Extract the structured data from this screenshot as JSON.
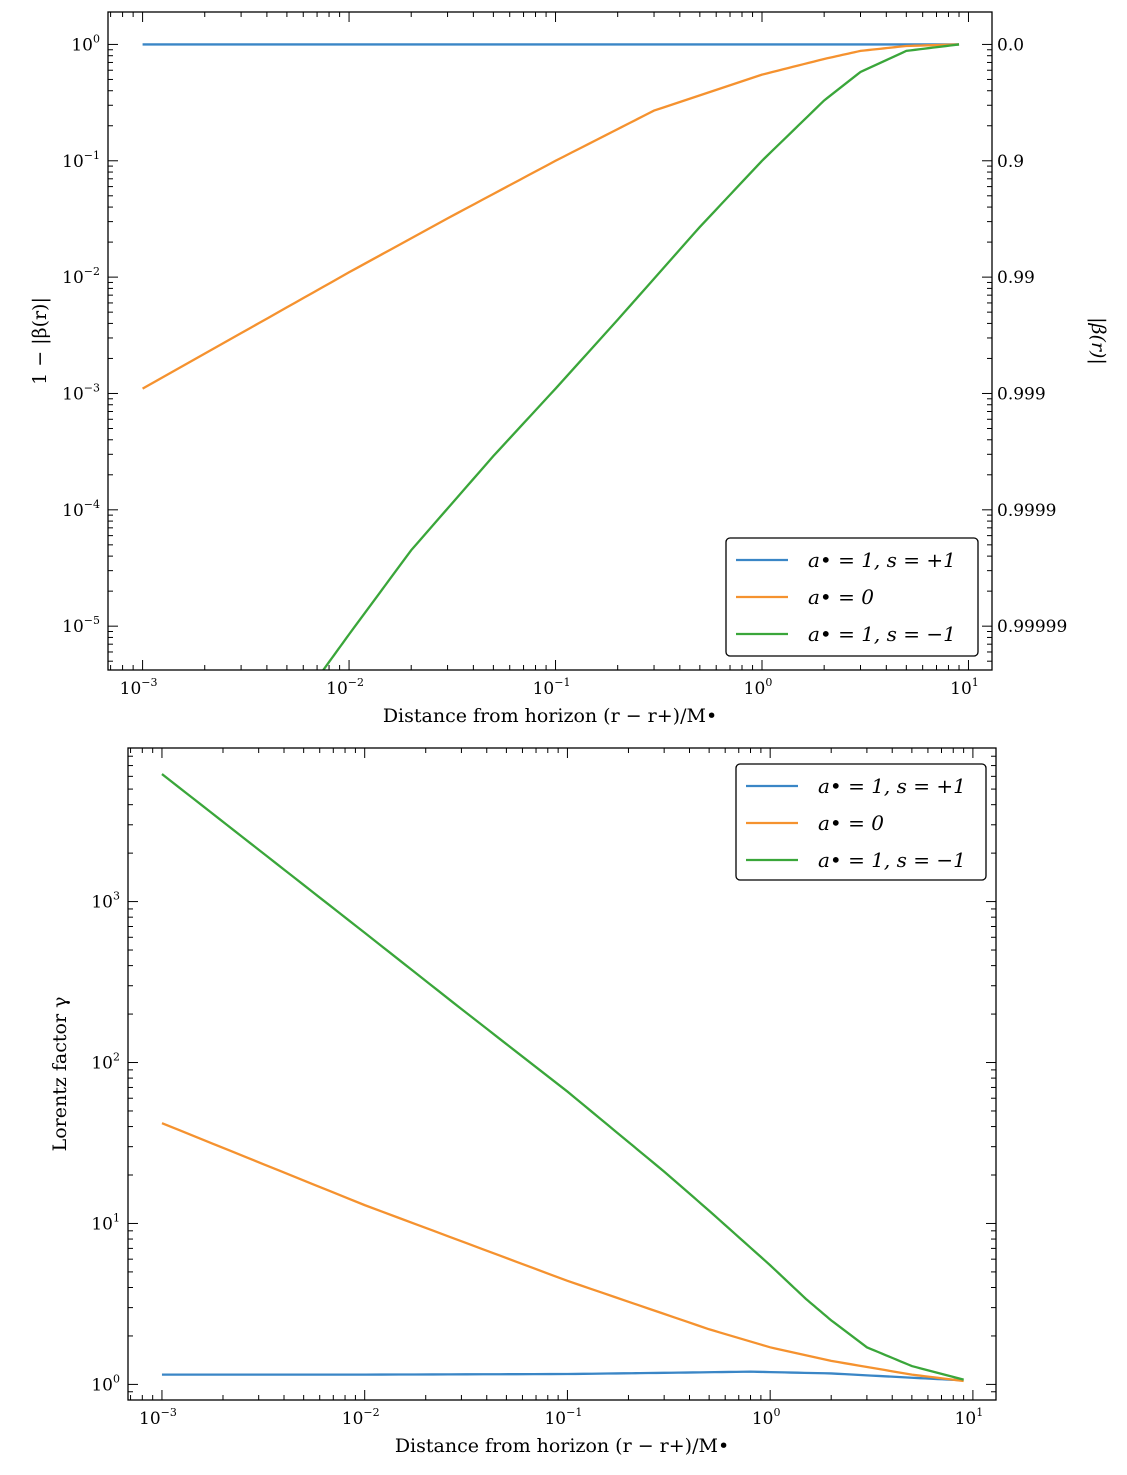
{
  "chart_data": [
    {
      "type": "line",
      "xlabel": "Distance from horizon (r − r+)/M•",
      "ylabel": "1 − |β(r)|",
      "ylabel_right": "|β(r)|",
      "x_scale": "log",
      "y_scale": "log",
      "xlim": [
        0.00068,
        13
      ],
      "ylim": [
        4.2e-06,
        1.9
      ],
      "x_ticks": [
        {
          "value": 0.001,
          "base": "10",
          "exp": "−3"
        },
        {
          "value": 0.01,
          "base": "10",
          "exp": "−2"
        },
        {
          "value": 0.1,
          "base": "10",
          "exp": "−1"
        },
        {
          "value": 1,
          "base": "10",
          "exp": "0"
        },
        {
          "value": 10,
          "base": "10",
          "exp": "1"
        }
      ],
      "y_ticks": [
        {
          "value": 1,
          "base": "10",
          "exp": "0"
        },
        {
          "value": 0.1,
          "base": "10",
          "exp": "−1"
        },
        {
          "value": 0.01,
          "base": "10",
          "exp": "−2"
        },
        {
          "value": 0.001,
          "base": "10",
          "exp": "−3"
        },
        {
          "value": 0.0001,
          "base": "10",
          "exp": "−4"
        },
        {
          "value": 1e-05,
          "base": "10",
          "exp": "−5"
        }
      ],
      "y_ticks_right": [
        {
          "value": 1,
          "label": "0.0"
        },
        {
          "value": 0.1,
          "label": "0.9"
        },
        {
          "value": 0.01,
          "label": "0.99"
        },
        {
          "value": 0.001,
          "label": "0.999"
        },
        {
          "value": 0.0001,
          "label": "0.9999"
        },
        {
          "value": 1e-05,
          "label": "0.99999"
        }
      ],
      "legend_position": "bottom-right",
      "grid": false,
      "series": [
        {
          "name": "a• = 1, s = +1",
          "color": "#3a86c6",
          "x": [
            0.001,
            0.01,
            0.1,
            1,
            5,
            9
          ],
          "y": [
            1,
            1,
            1,
            1,
            1,
            1
          ]
        },
        {
          "name": "a• = 0",
          "color": "#f5922f",
          "x": [
            0.001,
            0.003,
            0.01,
            0.03,
            0.1,
            0.3,
            1,
            2,
            3,
            5,
            9
          ],
          "y": [
            0.0011,
            0.0033,
            0.011,
            0.032,
            0.1,
            0.27,
            0.55,
            0.75,
            0.88,
            0.97,
            1.0
          ]
        },
        {
          "name": "a• = 1, s = −1",
          "color": "#3aa63a",
          "x": [
            0.0075,
            0.01,
            0.02,
            0.05,
            0.1,
            0.2,
            0.5,
            1,
            2,
            3,
            5,
            9
          ],
          "y": [
            4.2e-06,
            8.5e-06,
            4.5e-05,
            0.00029,
            0.0011,
            0.0043,
            0.027,
            0.1,
            0.33,
            0.58,
            0.88,
            1.0
          ]
        }
      ]
    },
    {
      "type": "line",
      "xlabel": "Distance from horizon (r − r+)/M•",
      "ylabel": "Lorentz factor γ",
      "x_scale": "log",
      "y_scale": "log",
      "xlim": [
        0.00068,
        13
      ],
      "ylim": [
        0.8,
        9000
      ],
      "x_ticks": [
        {
          "value": 0.001,
          "base": "10",
          "exp": "−3"
        },
        {
          "value": 0.01,
          "base": "10",
          "exp": "−2"
        },
        {
          "value": 0.1,
          "base": "10",
          "exp": "−1"
        },
        {
          "value": 1,
          "base": "10",
          "exp": "0"
        },
        {
          "value": 10,
          "base": "10",
          "exp": "1"
        }
      ],
      "y_ticks": [
        {
          "value": 1,
          "base": "10",
          "exp": "0"
        },
        {
          "value": 10,
          "base": "10",
          "exp": "1"
        },
        {
          "value": 100,
          "base": "10",
          "exp": "2"
        },
        {
          "value": 1000,
          "base": "10",
          "exp": "3"
        }
      ],
      "legend_position": "top-right",
      "grid": false,
      "series": [
        {
          "name": "a• = 1, s = +1",
          "color": "#3a86c6",
          "x": [
            0.001,
            0.01,
            0.1,
            0.3,
            0.8,
            2,
            5,
            9
          ],
          "y": [
            1.15,
            1.15,
            1.16,
            1.18,
            1.2,
            1.17,
            1.1,
            1.06
          ]
        },
        {
          "name": "a• = 0",
          "color": "#f5922f",
          "x": [
            0.001,
            0.01,
            0.1,
            0.5,
            1,
            2,
            5,
            9
          ],
          "y": [
            42,
            13,
            4.4,
            2.2,
            1.7,
            1.4,
            1.15,
            1.05
          ]
        },
        {
          "name": "a• = 1, s = −1",
          "color": "#3aa63a",
          "x": [
            0.001,
            0.003,
            0.01,
            0.03,
            0.1,
            0.3,
            0.5,
            1,
            1.5,
            2,
            3,
            5,
            9
          ],
          "y": [
            6200,
            2100,
            640,
            215,
            66,
            21,
            12,
            5.5,
            3.4,
            2.5,
            1.7,
            1.3,
            1.07
          ]
        }
      ]
    }
  ]
}
